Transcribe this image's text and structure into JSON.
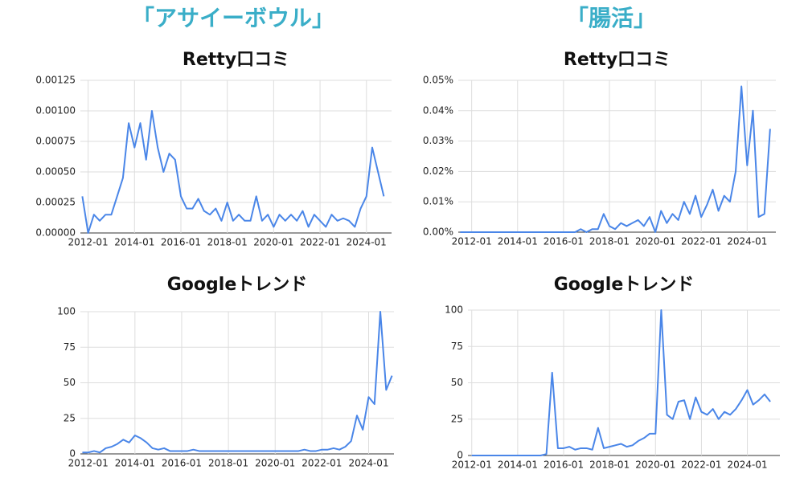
{
  "headings": [
    "「アサイーボウル」",
    "「腸活」"
  ],
  "chart_data": [
    {
      "type": "line",
      "title": "Retty口コミ",
      "color": "#4a86e8",
      "grid": true,
      "xlim": [
        "2011-09",
        "2025-02"
      ],
      "xticks": [
        "2012-01",
        "2014-01",
        "2016-01",
        "2018-01",
        "2020-01",
        "2022-01",
        "2024-01"
      ],
      "ylim": [
        0,
        0.00125
      ],
      "yticks": [
        {
          "value": 0,
          "label": "0.00000"
        },
        {
          "value": 0.00025,
          "label": "0.00025"
        },
        {
          "value": 0.0005,
          "label": "0.00050"
        },
        {
          "value": 0.00075,
          "label": "0.00075"
        },
        {
          "value": 0.001,
          "label": "0.00100"
        },
        {
          "value": 0.00125,
          "label": "0.00125"
        }
      ],
      "x": [
        "2011-10",
        "2012-01",
        "2012-04",
        "2012-07",
        "2012-10",
        "2013-01",
        "2013-04",
        "2013-07",
        "2013-10",
        "2014-01",
        "2014-04",
        "2014-07",
        "2014-10",
        "2015-01",
        "2015-04",
        "2015-07",
        "2015-10",
        "2016-01",
        "2016-04",
        "2016-07",
        "2016-10",
        "2017-01",
        "2017-04",
        "2017-07",
        "2017-10",
        "2018-01",
        "2018-04",
        "2018-07",
        "2018-10",
        "2019-01",
        "2019-04",
        "2019-07",
        "2019-10",
        "2020-01",
        "2020-04",
        "2020-07",
        "2020-10",
        "2021-01",
        "2021-04",
        "2021-07",
        "2021-10",
        "2022-01",
        "2022-04",
        "2022-07",
        "2022-10",
        "2023-01",
        "2023-04",
        "2023-07",
        "2023-10",
        "2024-01",
        "2024-04",
        "2024-07",
        "2024-10"
      ],
      "values": [
        0.0003,
        0,
        0.00015,
        0.0001,
        0.00015,
        0.00015,
        0.0003,
        0.00045,
        0.0009,
        0.0007,
        0.0009,
        0.0006,
        0.001,
        0.0007,
        0.0005,
        0.00065,
        0.0006,
        0.0003,
        0.0002,
        0.0002,
        0.00028,
        0.00018,
        0.00015,
        0.0002,
        0.0001,
        0.00025,
        0.0001,
        0.00015,
        0.0001,
        0.0001,
        0.0003,
        0.0001,
        0.00015,
        5e-05,
        0.00015,
        0.0001,
        0.00015,
        0.0001,
        0.00018,
        5e-05,
        0.00015,
        0.0001,
        5e-05,
        0.00015,
        0.0001,
        0.00012,
        0.0001,
        5e-05,
        0.0002,
        0.0003,
        0.0007,
        0.0005,
        0.0003
      ]
    },
    {
      "type": "line",
      "title": "Retty口コミ",
      "color": "#4a86e8",
      "grid": true,
      "xlim": [
        "2011-06",
        "2025-04"
      ],
      "xticks": [
        "2012-01",
        "2014-01",
        "2016-01",
        "2018-01",
        "2020-01",
        "2022-01",
        "2024-01"
      ],
      "ylim": [
        0,
        0.05
      ],
      "yticks": [
        {
          "value": 0,
          "label": "0.00%"
        },
        {
          "value": 0.01,
          "label": "0.01%"
        },
        {
          "value": 0.02,
          "label": "0.02%"
        },
        {
          "value": 0.03,
          "label": "0.03%"
        },
        {
          "value": 0.04,
          "label": "0.04%"
        },
        {
          "value": 0.05,
          "label": "0.05%"
        }
      ],
      "x": [
        "2011-07",
        "2011-10",
        "2012-01",
        "2012-04",
        "2012-07",
        "2012-10",
        "2013-01",
        "2013-04",
        "2013-07",
        "2013-10",
        "2014-01",
        "2014-04",
        "2014-07",
        "2014-10",
        "2015-01",
        "2015-04",
        "2015-07",
        "2015-10",
        "2016-01",
        "2016-04",
        "2016-07",
        "2016-10",
        "2017-01",
        "2017-04",
        "2017-07",
        "2017-10",
        "2018-01",
        "2018-04",
        "2018-07",
        "2018-10",
        "2019-01",
        "2019-04",
        "2019-07",
        "2019-10",
        "2020-01",
        "2020-04",
        "2020-07",
        "2020-10",
        "2021-01",
        "2021-04",
        "2021-07",
        "2021-10",
        "2022-01",
        "2022-04",
        "2022-07",
        "2022-10",
        "2023-01",
        "2023-04",
        "2023-07",
        "2023-10",
        "2024-01",
        "2024-04",
        "2024-07",
        "2024-10",
        "2025-01"
      ],
      "values": [
        0,
        0,
        0,
        0,
        0,
        0,
        0,
        0,
        0,
        0,
        0,
        0,
        0,
        0,
        0,
        0,
        0,
        0,
        0,
        0,
        0,
        0.001,
        0,
        0.001,
        0.001,
        0.006,
        0.002,
        0.001,
        0.003,
        0.002,
        0.003,
        0.004,
        0.002,
        0.005,
        0,
        0.007,
        0.003,
        0.006,
        0.004,
        0.01,
        0.006,
        0.012,
        0.005,
        0.009,
        0.014,
        0.007,
        0.012,
        0.01,
        0.02,
        0.048,
        0.022,
        0.04,
        0.005,
        0.006,
        0.034
      ]
    },
    {
      "type": "line",
      "title": "Googleトレンド",
      "color": "#4a86e8",
      "grid": true,
      "xlim": [
        "2011-09",
        "2025-02"
      ],
      "xticks": [
        "2012-01",
        "2014-01",
        "2016-01",
        "2018-01",
        "2020-01",
        "2022-01",
        "2024-01"
      ],
      "ylim": [
        0,
        100
      ],
      "yticks": [
        0,
        25,
        50,
        75,
        100
      ],
      "x": [
        "2011-10",
        "2012-01",
        "2012-04",
        "2012-07",
        "2012-10",
        "2013-01",
        "2013-04",
        "2013-07",
        "2013-10",
        "2014-01",
        "2014-04",
        "2014-07",
        "2014-10",
        "2015-01",
        "2015-04",
        "2015-07",
        "2015-10",
        "2016-01",
        "2016-04",
        "2016-07",
        "2016-10",
        "2017-01",
        "2017-04",
        "2017-07",
        "2017-10",
        "2018-01",
        "2018-04",
        "2018-07",
        "2018-10",
        "2019-01",
        "2019-04",
        "2019-07",
        "2019-10",
        "2020-01",
        "2020-04",
        "2020-07",
        "2020-10",
        "2021-01",
        "2021-04",
        "2021-07",
        "2021-10",
        "2022-01",
        "2022-04",
        "2022-07",
        "2022-10",
        "2023-01",
        "2023-04",
        "2023-07",
        "2023-10",
        "2024-01",
        "2024-04",
        "2024-07",
        "2024-10",
        "2025-01"
      ],
      "values": [
        1,
        1,
        2,
        1,
        4,
        5,
        7,
        10,
        8,
        13,
        11,
        8,
        4,
        3,
        4,
        2,
        2,
        2,
        2,
        3,
        2,
        2,
        2,
        2,
        2,
        2,
        2,
        2,
        2,
        2,
        2,
        2,
        2,
        2,
        2,
        2,
        2,
        2,
        3,
        2,
        2,
        3,
        3,
        4,
        3,
        5,
        9,
        27,
        17,
        40,
        35,
        100,
        45,
        55
      ]
    },
    {
      "type": "line",
      "title": "Googleトレンド",
      "color": "#4a86e8",
      "grid": true,
      "xlim": [
        "2011-11",
        "2025-06"
      ],
      "xticks": [
        "2012-01",
        "2014-01",
        "2016-01",
        "2018-01",
        "2020-01",
        "2022-01",
        "2024-01"
      ],
      "ylim": [
        0,
        100
      ],
      "yticks": [
        0,
        25,
        50,
        75,
        100
      ],
      "x": [
        "2012-01",
        "2012-04",
        "2012-07",
        "2012-10",
        "2013-01",
        "2013-04",
        "2013-07",
        "2013-10",
        "2014-01",
        "2014-04",
        "2014-07",
        "2014-10",
        "2015-01",
        "2015-04",
        "2015-07",
        "2015-10",
        "2016-01",
        "2016-04",
        "2016-07",
        "2016-10",
        "2017-01",
        "2017-04",
        "2017-07",
        "2017-10",
        "2018-01",
        "2018-04",
        "2018-07",
        "2018-10",
        "2019-01",
        "2019-04",
        "2019-07",
        "2019-10",
        "2020-01",
        "2020-04",
        "2020-07",
        "2020-10",
        "2021-01",
        "2021-04",
        "2021-07",
        "2021-10",
        "2022-01",
        "2022-04",
        "2022-07",
        "2022-10",
        "2023-01",
        "2023-04",
        "2023-07",
        "2023-10",
        "2024-01",
        "2024-04",
        "2024-07",
        "2024-10",
        "2025-01"
      ],
      "values": [
        0,
        0,
        0,
        0,
        0,
        0,
        0,
        0,
        0,
        0,
        0,
        0,
        0,
        1,
        57,
        5,
        5,
        6,
        4,
        5,
        5,
        4,
        19,
        5,
        6,
        7,
        8,
        6,
        7,
        10,
        12,
        15,
        15,
        100,
        28,
        25,
        37,
        38,
        25,
        40,
        30,
        28,
        32,
        25,
        30,
        28,
        32,
        38,
        45,
        35,
        38,
        42,
        37
      ]
    }
  ]
}
